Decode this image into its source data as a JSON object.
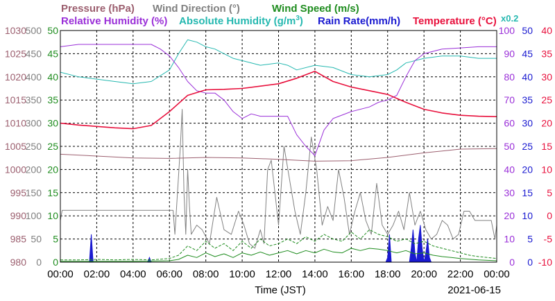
{
  "chart_data": {
    "type": "line",
    "legend": [
      {
        "key": "pressure",
        "label": "Pressure (hPa)",
        "color": "#9b5e6e"
      },
      {
        "key": "wind_direction",
        "label": "Wind Direction (°)",
        "color": "#808080"
      },
      {
        "key": "wind_speed",
        "label": "Wind Speed (m/s)",
        "color": "#1e8c1e"
      },
      {
        "key": "relative_humidity",
        "label": "Relative Humidity (%)",
        "color": "#9a2fd8"
      },
      {
        "key": "absolute_humidity",
        "label": "Absolute Humidity (g/m³)",
        "label_base": "Absolute Humidity (g/m",
        "label_sup": "3",
        "label_end": ")",
        "color": "#25b8b0",
        "scale_note": "x0.2"
      },
      {
        "key": "rain_rate",
        "label": "Rain Rate(mm/h)",
        "color": "#1a1ad0"
      },
      {
        "key": "temperature",
        "label": "Temperature (°C)",
        "color": "#e8103c"
      }
    ],
    "xlabel": "Time (JST)",
    "date": "2021-06-15",
    "x_ticks": [
      "00:00",
      "02:00",
      "04:00",
      "06:00",
      "08:00",
      "10:00",
      "12:00",
      "14:00",
      "16:00",
      "18:00",
      "20:00",
      "22:00",
      "00:00"
    ],
    "x_range_hours": [
      0,
      24
    ],
    "axes": {
      "pressure": {
        "range": [
          980,
          1030
        ],
        "ticks": [
          980,
          985,
          990,
          995,
          1000,
          1005,
          1010,
          1015,
          1020,
          1025,
          1030
        ]
      },
      "wind_direction": {
        "range": [
          0,
          500
        ],
        "ticks": [
          0,
          50,
          100,
          150,
          200,
          250,
          300,
          350,
          400,
          450,
          500
        ]
      },
      "wind_speed": {
        "range": [
          0,
          50
        ],
        "ticks": [
          0,
          5,
          10,
          15,
          20,
          25,
          30,
          35,
          40,
          45,
          50
        ]
      },
      "relative_humidity": {
        "range": [
          0,
          100
        ],
        "ticks": [
          0,
          10,
          20,
          30,
          40,
          50,
          60,
          70,
          80,
          90,
          100
        ]
      },
      "rain_rate": {
        "range": [
          0,
          50
        ],
        "ticks": [
          0,
          5,
          10,
          15,
          20,
          25,
          30,
          35,
          40,
          45,
          50
        ]
      },
      "temperature": {
        "range": [
          -10,
          40
        ],
        "ticks": [
          -10,
          -5,
          0,
          5,
          10,
          15,
          20,
          25,
          30,
          35,
          40
        ]
      }
    },
    "grid": true,
    "series": [
      {
        "key": "pressure",
        "x": [
          0,
          2,
          4,
          6,
          8,
          10,
          12,
          14,
          16,
          18,
          20,
          22,
          24
        ],
        "y": [
          1003.3,
          1002.9,
          1002.5,
          1002.4,
          1002.6,
          1002.5,
          1002.2,
          1001.8,
          1001.9,
          1002.6,
          1003.6,
          1004.4,
          1004.5
        ]
      },
      {
        "key": "temperature",
        "x": [
          0,
          1,
          2,
          3,
          4,
          5,
          6,
          7,
          8,
          9,
          10,
          11,
          12,
          13,
          14,
          15,
          16,
          17,
          18,
          19,
          20,
          21,
          22,
          23,
          24
        ],
        "y": [
          20,
          19.6,
          19.3,
          19.0,
          18.8,
          19.5,
          22.5,
          26.0,
          27.2,
          27.3,
          27.5,
          28.0,
          28.5,
          29.7,
          31.2,
          29.0,
          27.8,
          27.0,
          26.2,
          24.5,
          23.0,
          22.2,
          21.7,
          21.5,
          21.4
        ]
      },
      {
        "key": "relative_humidity",
        "x": [
          0,
          1,
          2,
          3,
          4,
          5,
          5.5,
          6,
          6.5,
          7,
          7.5,
          8,
          8.5,
          9,
          9.5,
          10,
          10.5,
          11,
          12,
          12.5,
          13,
          13.5,
          14,
          14.5,
          15,
          16,
          17,
          17.5,
          18,
          18.5,
          19,
          19.5,
          20,
          21,
          22,
          23,
          24
        ],
        "y": [
          93,
          94,
          94,
          94,
          94,
          94,
          92,
          89,
          84,
          78,
          74,
          73,
          73,
          70,
          65,
          62,
          64,
          63,
          63,
          63,
          55,
          50,
          46,
          57,
          62,
          65,
          67,
          69,
          70,
          72,
          80,
          87,
          90,
          92,
          92.5,
          93,
          93
        ]
      },
      {
        "key": "absolute_humidity",
        "x": [
          0,
          1,
          2,
          3,
          4,
          5,
          6,
          6.5,
          7,
          7.5,
          8,
          8.5,
          9,
          9.5,
          10,
          11,
          12,
          12.5,
          13,
          14,
          15,
          16,
          17,
          18,
          18.5,
          19,
          20,
          21,
          22,
          23,
          24
        ],
        "y": [
          82,
          80,
          79,
          78,
          77,
          78,
          83,
          90,
          96,
          95,
          93,
          92,
          90,
          88,
          87,
          85,
          86,
          85,
          83,
          85,
          84,
          81,
          80,
          81,
          83,
          86,
          88,
          89,
          89,
          88,
          88
        ]
      },
      {
        "key": "wind_direction",
        "x": [
          0,
          0.1,
          2,
          4,
          6.2,
          6.3,
          6.6,
          6.7,
          6.8,
          6.9,
          7.0,
          7.1,
          7.2,
          7.5,
          7.8,
          8.2,
          8.6,
          9.0,
          9.4,
          9.8,
          10.1,
          10.4,
          10.7,
          11.0,
          11.2,
          11.4,
          11.6,
          11.8,
          12.0,
          12.3,
          12.6,
          12.9,
          13.2,
          13.5,
          13.8,
          14.1,
          14.4,
          14.7,
          15.0,
          15.3,
          15.6,
          15.9,
          16.2,
          16.5,
          16.8,
          17.1,
          17.4,
          17.7,
          18.0,
          18.3,
          18.6,
          18.9,
          19.2,
          19.5,
          19.8,
          20.1,
          20.4,
          20.7,
          21.0,
          21.3,
          21.6,
          21.9,
          22.2,
          22.5,
          22.8,
          23.1,
          23.4,
          23.7,
          23.9,
          24
        ],
        "y": [
          90,
          112,
          112,
          112,
          112,
          60,
          250,
          330,
          150,
          60,
          200,
          120,
          60,
          80,
          70,
          40,
          140,
          70,
          60,
          110,
          80,
          40,
          30,
          70,
          40,
          200,
          220,
          150,
          80,
          250,
          180,
          110,
          60,
          150,
          270,
          200,
          80,
          120,
          90,
          200,
          140,
          60,
          110,
          150,
          90,
          60,
          170,
          80,
          60,
          80,
          110,
          70,
          150,
          80,
          110,
          70,
          50,
          60,
          90,
          80,
          50,
          60,
          110,
          110,
          90,
          90,
          90,
          90,
          50,
          80
        ]
      },
      {
        "key": "wind_speed",
        "style": "dashed",
        "x": [
          0,
          1,
          2,
          3,
          4,
          5,
          6,
          6.5,
          7,
          7.5,
          8,
          8.5,
          9,
          9.5,
          10,
          10.5,
          11,
          11.5,
          12,
          12.5,
          13,
          13.5,
          14,
          14.5,
          15,
          15.5,
          16,
          16.5,
          17,
          17.5,
          18,
          18.5,
          19,
          19.5,
          20,
          20.5,
          21,
          21.5,
          22,
          22.5,
          23,
          23.5,
          24
        ],
        "y": [
          0.5,
          0.5,
          0.6,
          0.5,
          0.6,
          0.5,
          0.8,
          1.5,
          3.5,
          2.5,
          4.5,
          3.0,
          4.0,
          2.5,
          4.5,
          3.0,
          5.0,
          3.5,
          4.0,
          5.0,
          4.0,
          5.5,
          4.5,
          6.0,
          5.0,
          4.5,
          6.5,
          5.0,
          7.0,
          6.0,
          5.5,
          4.5,
          5.0,
          4.0,
          4.5,
          3.5,
          3.0,
          2.5,
          2.0,
          1.5,
          1.2,
          1.0,
          0.8
        ]
      },
      {
        "key": "wind_speed",
        "style": "solid",
        "x": [
          0,
          2,
          4,
          6,
          6.5,
          7,
          7.5,
          8,
          8.5,
          9,
          9.5,
          10,
          10.5,
          11,
          11.5,
          12,
          12.5,
          13,
          13.5,
          14,
          14.5,
          15,
          15.5,
          16,
          16.5,
          17,
          17.5,
          18,
          18.5,
          19,
          19.5,
          20,
          20.5,
          21,
          21.5,
          22,
          23,
          24
        ],
        "y": [
          0.2,
          0.2,
          0.2,
          0.3,
          0.6,
          1.5,
          1.0,
          2.0,
          1.2,
          1.8,
          1.0,
          2.0,
          1.5,
          2.2,
          1.5,
          2.0,
          2.5,
          1.8,
          2.5,
          2.0,
          2.8,
          2.2,
          2.0,
          3.0,
          2.5,
          3.0,
          2.8,
          2.5,
          2.0,
          2.5,
          1.8,
          2.0,
          1.5,
          1.2,
          1.0,
          0.8,
          0.5,
          0.3
        ]
      },
      {
        "key": "rain_rate",
        "type": "area",
        "x": [
          0,
          1.6,
          1.7,
          1.8,
          1.9,
          4.8,
          4.9,
          5.0,
          17.8,
          17.9,
          18.0,
          18.1,
          18.2,
          19.2,
          19.3,
          19.4,
          19.5,
          19.6,
          19.7,
          19.8,
          19.9,
          20.0,
          20.1,
          20.2,
          20.3,
          20.4,
          24
        ],
        "y": [
          0,
          0,
          6,
          0,
          0,
          0,
          1,
          0,
          0,
          0,
          1,
          6,
          0,
          0,
          3,
          7,
          2,
          0,
          5,
          8,
          3,
          0,
          2,
          5,
          1,
          0,
          0
        ]
      }
    ]
  }
}
